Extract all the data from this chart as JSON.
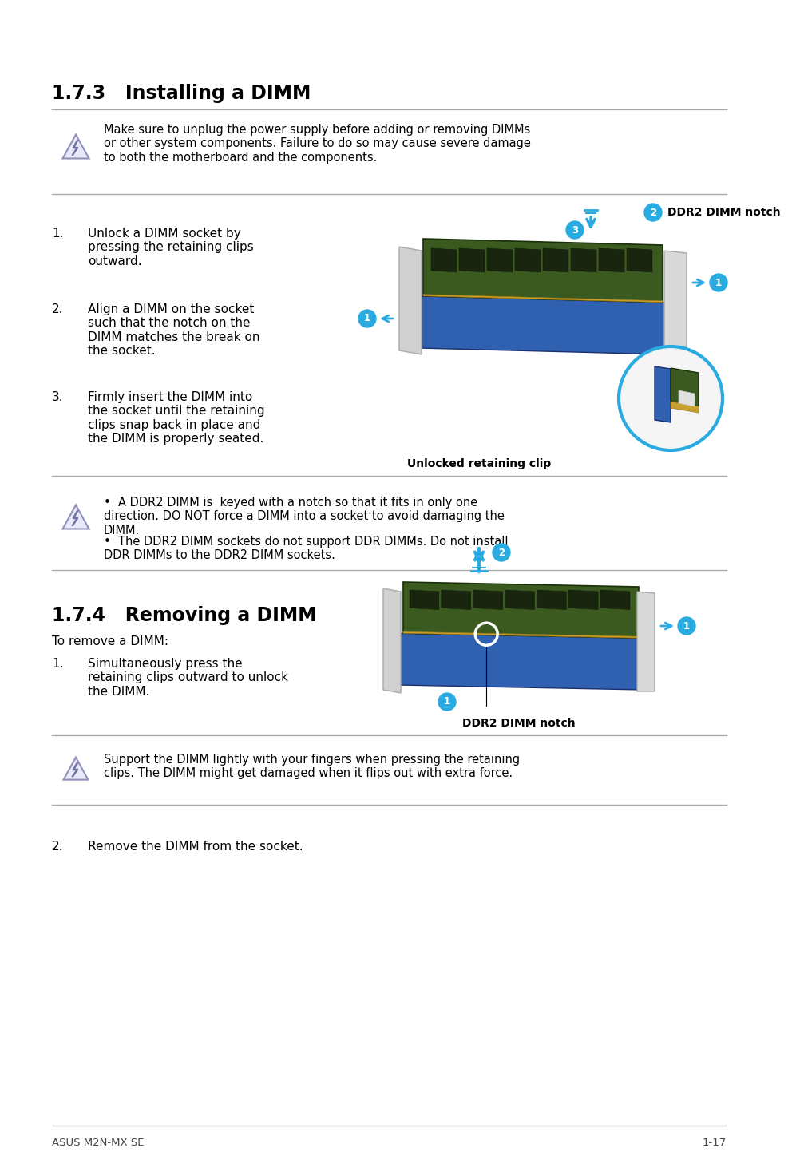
{
  "bg_color": "#ffffff",
  "title1": "1.7.3   Installing a DIMM",
  "title2": "1.7.4   Removing a DIMM",
  "footer_left": "ASUS M2N-MX SE",
  "footer_right": "1-17",
  "warn1_text": "Make sure to unplug the power supply before adding or removing DIMMs\nor other system components. Failure to do so may cause severe damage\nto both the motherboard and the components.",
  "steps1": [
    "Unlock a DIMM socket by\npressing the retaining clips\noutward.",
    "Align a DIMM on the socket\nsuch that the notch on the\nDIMM matches the break on\nthe socket.",
    "Firmly insert the DIMM into\nthe socket until the retaining\nclips snap back in place and\nthe DIMM is properly seated."
  ],
  "note1_bullet1": "A DDR2 DIMM is  keyed with a notch so that it fits in only one\ndirection. DO NOT force a DIMM into a socket to avoid damaging the\nDIMM.",
  "note1_bullet2": "The DDR2 DIMM sockets do not support DDR DIMMs. Do not install\nDDR DIMMs to the DDR2 DIMM sockets.",
  "caption1": "Unlocked retaining clip",
  "ddr2_label": "DDR2 DIMM notch",
  "remove_intro": "To remove a DIMM:",
  "step2_1": "Simultaneously press the\nretaining clips outward to unlock\nthe DIMM.",
  "warn2_text": "Support the DIMM lightly with your fingers when pressing the retaining\nclips. The DIMM might get damaged when it flips out with extra force.",
  "step2_last": "Remove the DIMM from the socket.",
  "ddr2_label2": "DDR2 DIMM notch",
  "cyan": "#29abe2",
  "darkgreen": "#3a5a20",
  "gold": "#c8a030",
  "darkchip": "#1a2510"
}
